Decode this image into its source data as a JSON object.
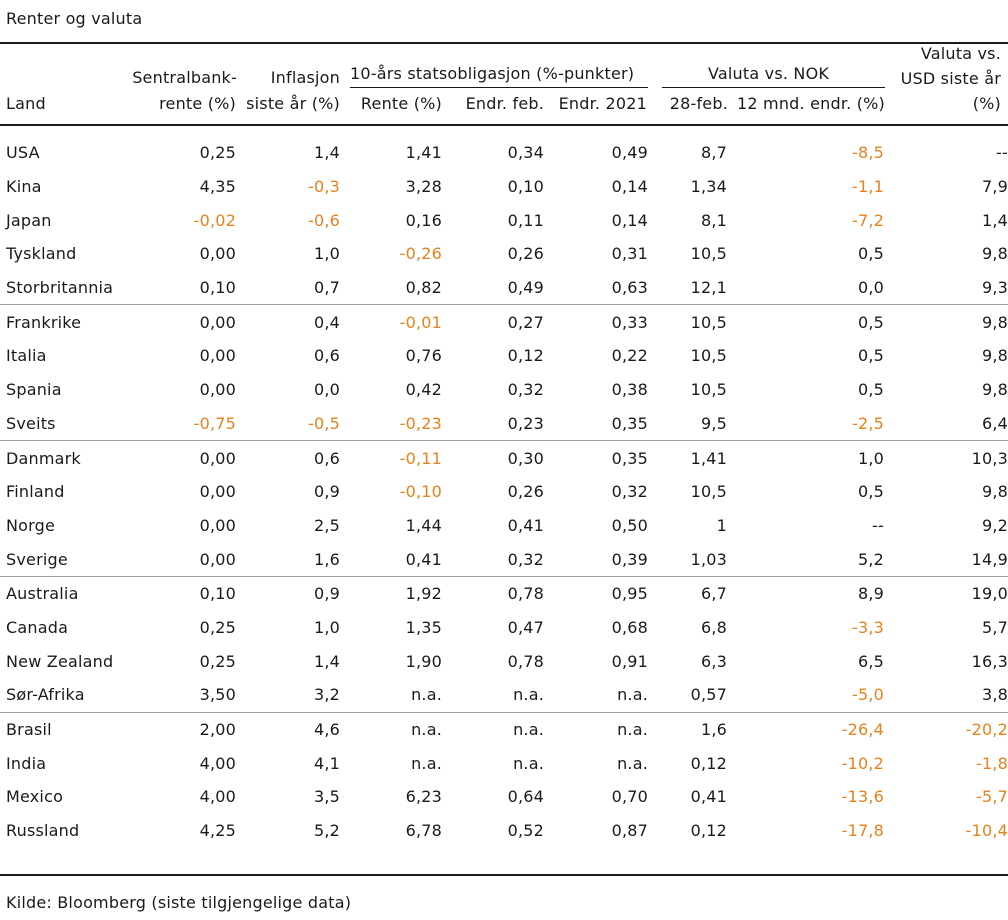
{
  "title": "Renter og valuta",
  "source": "Kilde: Bloomberg (siste tilgjengelige data)",
  "colors": {
    "negative": "#e8811a",
    "text": "#1a1a1a"
  },
  "headers": {
    "land": "Land",
    "sentralbank_1": "Sentralbank-",
    "sentralbank_2": "rente (%)",
    "inflasjon_1": "Inflasjon",
    "inflasjon_2": "siste år (%)",
    "group_obligasjon": "10-års statsobligasjon (%-punkter)",
    "rente": "Rente (%)",
    "endr_feb": "Endr. feb.",
    "endr_2021": "Endr. 2021",
    "group_valuta_nok": "Valuta vs. NOK",
    "nok_28feb": "28-feb.",
    "nok_12mnd": "12 mnd. endr. (%)",
    "usd_1": "Valuta vs.",
    "usd_2": "USD siste år",
    "usd_3": "(%)"
  },
  "rows": [
    [
      "USA",
      "0,25",
      "1,4",
      "1,41",
      "0,34",
      "0,49",
      "8,7",
      "-8,5",
      "--"
    ],
    [
      "Kina",
      "4,35",
      "-0,3",
      "3,28",
      "0,10",
      "0,14",
      "1,34",
      "-1,1",
      "7,9"
    ],
    [
      "Japan",
      "-0,02",
      "-0,6",
      "0,16",
      "0,11",
      "0,14",
      "8,1",
      "-7,2",
      "1,4"
    ],
    [
      "Tyskland",
      "0,00",
      "1,0",
      "-0,26",
      "0,26",
      "0,31",
      "10,5",
      "0,5",
      "9,8"
    ],
    [
      "Storbritannia",
      "0,10",
      "0,7",
      "0,82",
      "0,49",
      "0,63",
      "12,1",
      "0,0",
      "9,3"
    ],
    [
      "Frankrike",
      "0,00",
      "0,4",
      "-0,01",
      "0,27",
      "0,33",
      "10,5",
      "0,5",
      "9,8"
    ],
    [
      "Italia",
      "0,00",
      "0,6",
      "0,76",
      "0,12",
      "0,22",
      "10,5",
      "0,5",
      "9,8"
    ],
    [
      "Spania",
      "0,00",
      "0,0",
      "0,42",
      "0,32",
      "0,38",
      "10,5",
      "0,5",
      "9,8"
    ],
    [
      "Sveits",
      "-0,75",
      "-0,5",
      "-0,23",
      "0,23",
      "0,35",
      "9,5",
      "-2,5",
      "6,4"
    ],
    [
      "Danmark",
      "0,00",
      "0,6",
      "-0,11",
      "0,30",
      "0,35",
      "1,41",
      "1,0",
      "10,3"
    ],
    [
      "Finland",
      "0,00",
      "0,9",
      "-0,10",
      "0,26",
      "0,32",
      "10,5",
      "0,5",
      "9,8"
    ],
    [
      "Norge",
      "0,00",
      "2,5",
      "1,44",
      "0,41",
      "0,50",
      "1",
      "--",
      "9,2"
    ],
    [
      "Sverige",
      "0,00",
      "1,6",
      "0,41",
      "0,32",
      "0,39",
      "1,03",
      "5,2",
      "14,9"
    ],
    [
      "Australia",
      "0,10",
      "0,9",
      "1,92",
      "0,78",
      "0,95",
      "6,7",
      "8,9",
      "19,0"
    ],
    [
      "Canada",
      "0,25",
      "1,0",
      "1,35",
      "0,47",
      "0,68",
      "6,8",
      "-3,3",
      "5,7"
    ],
    [
      "New Zealand",
      "0,25",
      "1,4",
      "1,90",
      "0,78",
      "0,91",
      "6,3",
      "6,5",
      "16,3"
    ],
    [
      "Sør-Afrika",
      "3,50",
      "3,2",
      "n.a.",
      "n.a.",
      "n.a.",
      "0,57",
      "-5,0",
      "3,8"
    ],
    [
      "Brasil",
      "2,00",
      "4,6",
      "n.a.",
      "n.a.",
      "n.a.",
      "1,6",
      "-26,4",
      "-20,2"
    ],
    [
      "India",
      "4,00",
      "4,1",
      "n.a.",
      "n.a.",
      "n.a.",
      "0,12",
      "-10,2",
      "-1,8"
    ],
    [
      "Mexico",
      "4,00",
      "3,5",
      "6,23",
      "0,64",
      "0,70",
      "0,41",
      "-13,6",
      "-5,7"
    ],
    [
      "Russland",
      "4,25",
      "5,2",
      "6,78",
      "0,52",
      "0,87",
      "0,12",
      "-17,8",
      "-10,4"
    ]
  ],
  "group_end_rows": [
    4,
    8,
    12,
    16
  ]
}
